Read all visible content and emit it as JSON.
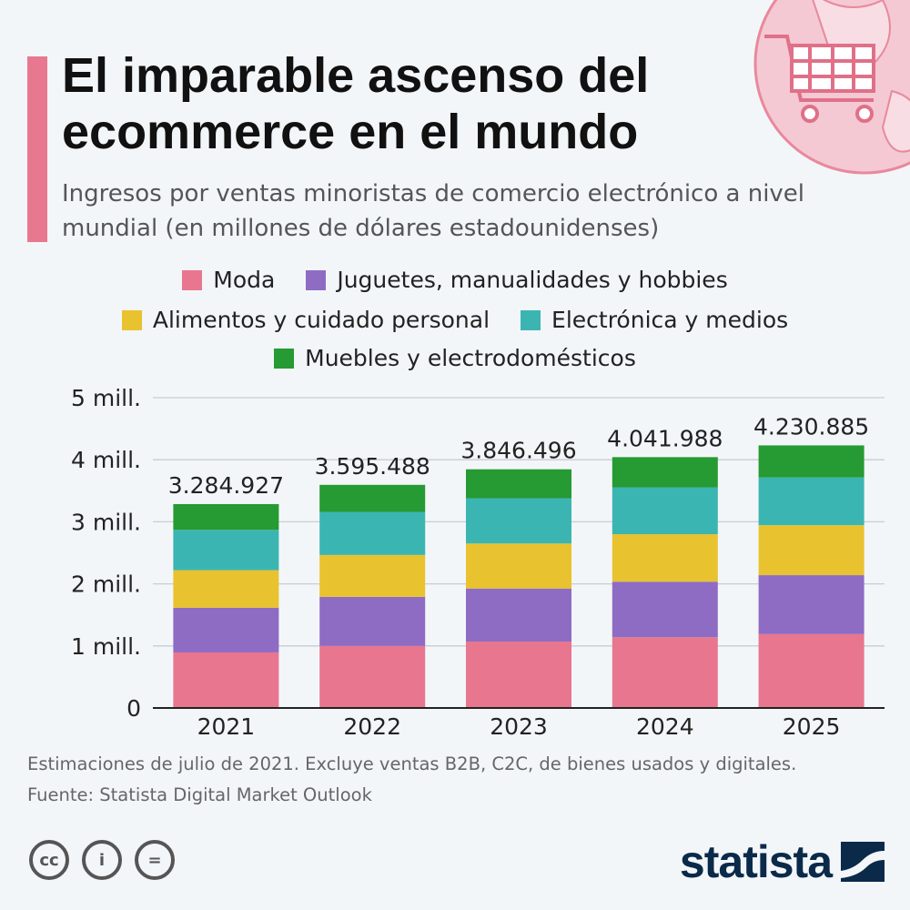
{
  "title": "El imparable ascenso del ecommerce en el mundo",
  "subtitle": "Ingresos por ventas minoristas de comercio electrónico a nivel mundial (en millones de dólares estadounidenses)",
  "legend": [
    {
      "label": "Moda",
      "color": "#e8768f"
    },
    {
      "label": "Juguetes, manualidades y hobbies",
      "color": "#8e6cc4"
    },
    {
      "label": "Alimentos y cuidado personal",
      "color": "#e9c22f"
    },
    {
      "label": "Electrónica y medios",
      "color": "#3bb5b2"
    },
    {
      "label": "Muebles y electrodomésticos",
      "color": "#269a33"
    }
  ],
  "chart_data": {
    "type": "bar",
    "stacked": true,
    "categories": [
      "2021",
      "2022",
      "2023",
      "2024",
      "2025"
    ],
    "series": [
      {
        "name": "Moda",
        "color": "#e8768f",
        "values": [
          895000,
          1000000,
          1070000,
          1140000,
          1190000
        ]
      },
      {
        "name": "Juguetes, manualidades y hobbies",
        "color": "#8e6cc4",
        "values": [
          720000,
          790000,
          855000,
          895000,
          950000
        ]
      },
      {
        "name": "Alimentos y cuidado personal",
        "color": "#e9c22f",
        "values": [
          605000,
          675000,
          725000,
          765000,
          805000
        ]
      },
      {
        "name": "Electrónica y medios",
        "color": "#3bb5b2",
        "values": [
          650000,
          695000,
          730000,
          755000,
          770000
        ]
      },
      {
        "name": "Muebles y electrodomésticos",
        "color": "#269a33",
        "values": [
          415000,
          435000,
          466000,
          487000,
          516000
        ]
      }
    ],
    "totals": [
      3284927,
      3595488,
      3846496,
      4041988,
      4230885
    ],
    "total_labels": [
      "3.284.927",
      "3.595.488",
      "3.846.496",
      "4.041.988",
      "4.230.885"
    ],
    "ylim": [
      0,
      5000000
    ],
    "yticks": [
      0,
      1000000,
      2000000,
      3000000,
      4000000,
      5000000
    ],
    "ytick_labels": [
      "0",
      "1 mill.",
      "2 mill.",
      "3 mill.",
      "4 mill.",
      "5 mill."
    ],
    "grid": true,
    "legend_position": "top"
  },
  "footnote": "Estimaciones de julio de 2021. Excluye ventas B2B, C2C, de bienes usados y digitales.",
  "source": "Fuente: Statista Digital Market Outlook",
  "license_icons": [
    "cc-icon",
    "attribution-icon",
    "no-derivatives-icon"
  ],
  "logo": "statista"
}
